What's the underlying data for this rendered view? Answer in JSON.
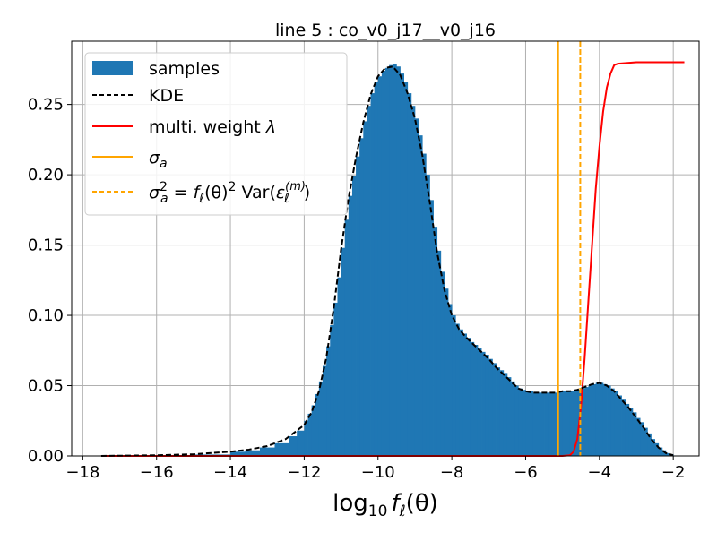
{
  "chart_data": {
    "type": "bar",
    "title": "line 5 : co_v0_j17__v0_j16",
    "xlabel": "log₁₀ fℓ(θ)",
    "ylabel": "",
    "xlim": [
      -18.3,
      -1.3
    ],
    "ylim": [
      0.0,
      0.295
    ],
    "xticks": [
      -18,
      -16,
      -14,
      -12,
      -10,
      -8,
      -6,
      -4,
      -2
    ],
    "xtick_labels": [
      "−18",
      "−16",
      "−14",
      "−12",
      "−10",
      "−8",
      "−6",
      "−4",
      "−2"
    ],
    "yticks": [
      0.0,
      0.05,
      0.1,
      0.15,
      0.2,
      0.25
    ],
    "ytick_labels": [
      "0.00",
      "0.05",
      "0.10",
      "0.15",
      "0.20",
      "0.25"
    ],
    "grid": true,
    "legend_position": "top-left",
    "colors": {
      "samples": "#1f77b4",
      "kde": "#000000",
      "weight": "#ff0000",
      "sigma": "#ffa500"
    },
    "histogram": {
      "name": "samples",
      "bins": [
        [
          -15.0,
          0.001
        ],
        [
          -14.0,
          0.003
        ],
        [
          -13.6,
          0.004
        ],
        [
          -13.2,
          0.006
        ],
        [
          -12.8,
          0.009
        ],
        [
          -12.4,
          0.014
        ],
        [
          -12.2,
          0.018
        ],
        [
          -12.0,
          0.025
        ],
        [
          -11.9,
          0.03
        ],
        [
          -11.8,
          0.036
        ],
        [
          -11.7,
          0.044
        ],
        [
          -11.6,
          0.053
        ],
        [
          -11.5,
          0.064
        ],
        [
          -11.4,
          0.078
        ],
        [
          -11.3,
          0.093
        ],
        [
          -11.2,
          0.109
        ],
        [
          -11.1,
          0.127
        ],
        [
          -11.0,
          0.148
        ],
        [
          -10.9,
          0.168
        ],
        [
          -10.8,
          0.185
        ],
        [
          -10.7,
          0.199
        ],
        [
          -10.6,
          0.213
        ],
        [
          -10.5,
          0.226
        ],
        [
          -10.4,
          0.238
        ],
        [
          -10.3,
          0.249
        ],
        [
          -10.2,
          0.258
        ],
        [
          -10.1,
          0.266
        ],
        [
          -10.0,
          0.27
        ],
        [
          -9.9,
          0.274
        ],
        [
          -9.8,
          0.276
        ],
        [
          -9.7,
          0.278
        ],
        [
          -9.6,
          0.279
        ],
        [
          -9.5,
          0.277
        ],
        [
          -9.4,
          0.272
        ],
        [
          -9.3,
          0.266
        ],
        [
          -9.2,
          0.258
        ],
        [
          -9.1,
          0.249
        ],
        [
          -9.0,
          0.24
        ],
        [
          -8.9,
          0.228
        ],
        [
          -8.8,
          0.215
        ],
        [
          -8.7,
          0.2
        ],
        [
          -8.6,
          0.182
        ],
        [
          -8.5,
          0.163
        ],
        [
          -8.4,
          0.146
        ],
        [
          -8.3,
          0.131
        ],
        [
          -8.2,
          0.119
        ],
        [
          -8.1,
          0.108
        ],
        [
          -8.0,
          0.1
        ],
        [
          -7.9,
          0.094
        ],
        [
          -7.8,
          0.09
        ],
        [
          -7.7,
          0.087
        ],
        [
          -7.6,
          0.084
        ],
        [
          -7.5,
          0.081
        ],
        [
          -7.4,
          0.079
        ],
        [
          -7.3,
          0.077
        ],
        [
          -7.2,
          0.074
        ],
        [
          -7.1,
          0.072
        ],
        [
          -7.0,
          0.069
        ],
        [
          -6.9,
          0.066
        ],
        [
          -6.8,
          0.063
        ],
        [
          -6.7,
          0.061
        ],
        [
          -6.6,
          0.059
        ],
        [
          -6.5,
          0.056
        ],
        [
          -6.4,
          0.053
        ],
        [
          -6.3,
          0.05
        ],
        [
          -6.2,
          0.048
        ],
        [
          -6.1,
          0.047
        ],
        [
          -6.0,
          0.046
        ],
        [
          -5.9,
          0.046
        ],
        [
          -5.8,
          0.045
        ],
        [
          -5.7,
          0.045
        ],
        [
          -5.6,
          0.045
        ],
        [
          -5.5,
          0.045
        ],
        [
          -5.4,
          0.045
        ],
        [
          -5.3,
          0.045
        ],
        [
          -5.2,
          0.045
        ],
        [
          -5.1,
          0.046
        ],
        [
          -5.0,
          0.046
        ],
        [
          -4.9,
          0.046
        ],
        [
          -4.8,
          0.046
        ],
        [
          -4.7,
          0.046
        ],
        [
          -4.6,
          0.047
        ],
        [
          -4.5,
          0.048
        ],
        [
          -4.4,
          0.049
        ],
        [
          -4.3,
          0.05
        ],
        [
          -4.2,
          0.051
        ],
        [
          -4.1,
          0.052
        ],
        [
          -4.0,
          0.052
        ],
        [
          -3.9,
          0.051
        ],
        [
          -3.8,
          0.05
        ],
        [
          -3.7,
          0.048
        ],
        [
          -3.6,
          0.046
        ],
        [
          -3.5,
          0.043
        ],
        [
          -3.4,
          0.04
        ],
        [
          -3.3,
          0.037
        ],
        [
          -3.2,
          0.034
        ],
        [
          -3.1,
          0.031
        ],
        [
          -3.0,
          0.027
        ],
        [
          -2.9,
          0.024
        ],
        [
          -2.8,
          0.02
        ],
        [
          -2.7,
          0.016
        ],
        [
          -2.6,
          0.012
        ],
        [
          -2.5,
          0.009
        ],
        [
          -2.4,
          0.006
        ],
        [
          -2.3,
          0.004
        ],
        [
          -2.2,
          0.002
        ],
        [
          -2.1,
          0.001
        ]
      ]
    },
    "series": [
      {
        "name": "KDE",
        "style": "dashed",
        "points": [
          [
            -17.5,
            0.0
          ],
          [
            -16.0,
            0.0005
          ],
          [
            -15.0,
            0.0012
          ],
          [
            -14.0,
            0.003
          ],
          [
            -13.5,
            0.0045
          ],
          [
            -13.0,
            0.007
          ],
          [
            -12.5,
            0.012
          ],
          [
            -12.0,
            0.022
          ],
          [
            -11.8,
            0.031
          ],
          [
            -11.6,
            0.046
          ],
          [
            -11.4,
            0.07
          ],
          [
            -11.2,
            0.105
          ],
          [
            -11.0,
            0.147
          ],
          [
            -10.8,
            0.183
          ],
          [
            -10.6,
            0.212
          ],
          [
            -10.4,
            0.237
          ],
          [
            -10.2,
            0.257
          ],
          [
            -10.0,
            0.27
          ],
          [
            -9.8,
            0.276
          ],
          [
            -9.6,
            0.277
          ],
          [
            -9.4,
            0.271
          ],
          [
            -9.2,
            0.258
          ],
          [
            -9.0,
            0.24
          ],
          [
            -8.8,
            0.214
          ],
          [
            -8.6,
            0.181
          ],
          [
            -8.4,
            0.145
          ],
          [
            -8.2,
            0.118
          ],
          [
            -8.0,
            0.1
          ],
          [
            -7.8,
            0.09
          ],
          [
            -7.6,
            0.084
          ],
          [
            -7.4,
            0.079
          ],
          [
            -7.2,
            0.074
          ],
          [
            -7.0,
            0.069
          ],
          [
            -6.8,
            0.063
          ],
          [
            -6.6,
            0.058
          ],
          [
            -6.4,
            0.053
          ],
          [
            -6.2,
            0.048
          ],
          [
            -6.0,
            0.046
          ],
          [
            -5.8,
            0.045
          ],
          [
            -5.6,
            0.045
          ],
          [
            -5.4,
            0.045
          ],
          [
            -5.2,
            0.045
          ],
          [
            -5.0,
            0.046
          ],
          [
            -4.8,
            0.046
          ],
          [
            -4.6,
            0.047
          ],
          [
            -4.4,
            0.049
          ],
          [
            -4.2,
            0.051
          ],
          [
            -4.0,
            0.052
          ],
          [
            -3.8,
            0.05
          ],
          [
            -3.6,
            0.046
          ],
          [
            -3.4,
            0.04
          ],
          [
            -3.2,
            0.034
          ],
          [
            -3.0,
            0.027
          ],
          [
            -2.8,
            0.02
          ],
          [
            -2.6,
            0.012
          ],
          [
            -2.4,
            0.006
          ],
          [
            -2.2,
            0.002
          ],
          [
            -2.0,
            0.0005
          ]
        ]
      },
      {
        "name": "multi. weight λ",
        "style": "solid",
        "points": [
          [
            -17.5,
            0.0
          ],
          [
            -5.0,
            0.0
          ],
          [
            -4.8,
            0.0005
          ],
          [
            -4.7,
            0.003
          ],
          [
            -4.6,
            0.012
          ],
          [
            -4.5,
            0.035
          ],
          [
            -4.4,
            0.07
          ],
          [
            -4.3,
            0.11
          ],
          [
            -4.2,
            0.15
          ],
          [
            -4.1,
            0.19
          ],
          [
            -4.0,
            0.22
          ],
          [
            -3.9,
            0.245
          ],
          [
            -3.8,
            0.262
          ],
          [
            -3.7,
            0.272
          ],
          [
            -3.6,
            0.278
          ],
          [
            -3.5,
            0.279
          ],
          [
            -3.0,
            0.28
          ],
          [
            -2.5,
            0.28
          ],
          [
            -1.7,
            0.28
          ]
        ]
      }
    ],
    "vlines": [
      {
        "name": "σa",
        "x": -5.12,
        "style": "solid"
      },
      {
        "name": "σa² = fℓ(θ)² Var(εℓ(m))",
        "x": -4.52,
        "style": "dashed"
      }
    ],
    "legend": {
      "samples": "samples",
      "kde": "KDE",
      "weight_main": "multi. weight ",
      "weight_sym": "λ",
      "sigma_main": "σ",
      "sigma_sub": "a",
      "var_lhs_main": "σ",
      "var_lhs_sup": "2",
      "var_lhs_sub": "a",
      "var_eq": " = ",
      "var_f": "f",
      "var_f_sub": "ℓ",
      "var_theta": "(θ)",
      "var_theta_sup": "2",
      "var_var": " Var(",
      "var_eps": "ε",
      "var_eps_sup": "(m)",
      "var_eps_sub": "ℓ",
      "var_close": ")"
    },
    "xlabel_parts": {
      "log": "log",
      "log_sub": "10",
      "f": "f",
      "f_sub": "ℓ",
      "theta": "(θ)"
    }
  }
}
